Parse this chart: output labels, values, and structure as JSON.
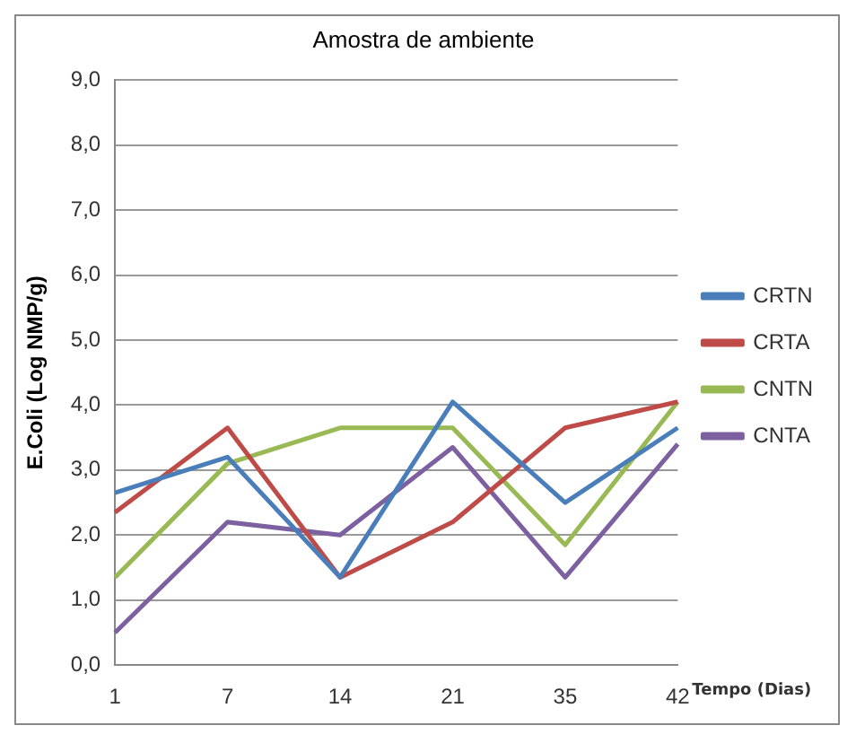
{
  "chart_data": {
    "type": "line",
    "title": "Amostra de ambiente",
    "xlabel": "Tempo (Dias)",
    "ylabel": "E.Coli (Log NMP/g)",
    "categories": [
      "1",
      "7",
      "14",
      "21",
      "35",
      "42"
    ],
    "series": [
      {
        "name": "CRTN",
        "color": "#4a7ebb",
        "values": [
          2.65,
          3.2,
          1.35,
          4.05,
          2.5,
          3.65
        ]
      },
      {
        "name": "CRTA",
        "color": "#be4b48",
        "values": [
          2.35,
          3.65,
          1.35,
          2.2,
          3.65,
          4.05
        ]
      },
      {
        "name": "CNTN",
        "color": "#98b954",
        "values": [
          1.35,
          3.1,
          3.65,
          3.65,
          1.85,
          4.05
        ]
      },
      {
        "name": "CNTA",
        "color": "#7d60a0",
        "values": [
          0.5,
          2.2,
          2.0,
          3.35,
          1.35,
          3.4
        ]
      }
    ],
    "ylim": [
      0,
      9
    ],
    "yticks": [
      {
        "value": 0,
        "label": "0,0"
      },
      {
        "value": 1,
        "label": "1,0"
      },
      {
        "value": 2,
        "label": "2,0"
      },
      {
        "value": 3,
        "label": "3,0"
      },
      {
        "value": 4,
        "label": "4,0"
      },
      {
        "value": 5,
        "label": "5,0"
      },
      {
        "value": 6,
        "label": "6,0"
      },
      {
        "value": 7,
        "label": "7,0"
      },
      {
        "value": 8,
        "label": "8,0"
      },
      {
        "value": 9,
        "label": "9,0"
      }
    ],
    "grid": "y",
    "legend": "right",
    "marker": "none",
    "line_style": "solid"
  }
}
